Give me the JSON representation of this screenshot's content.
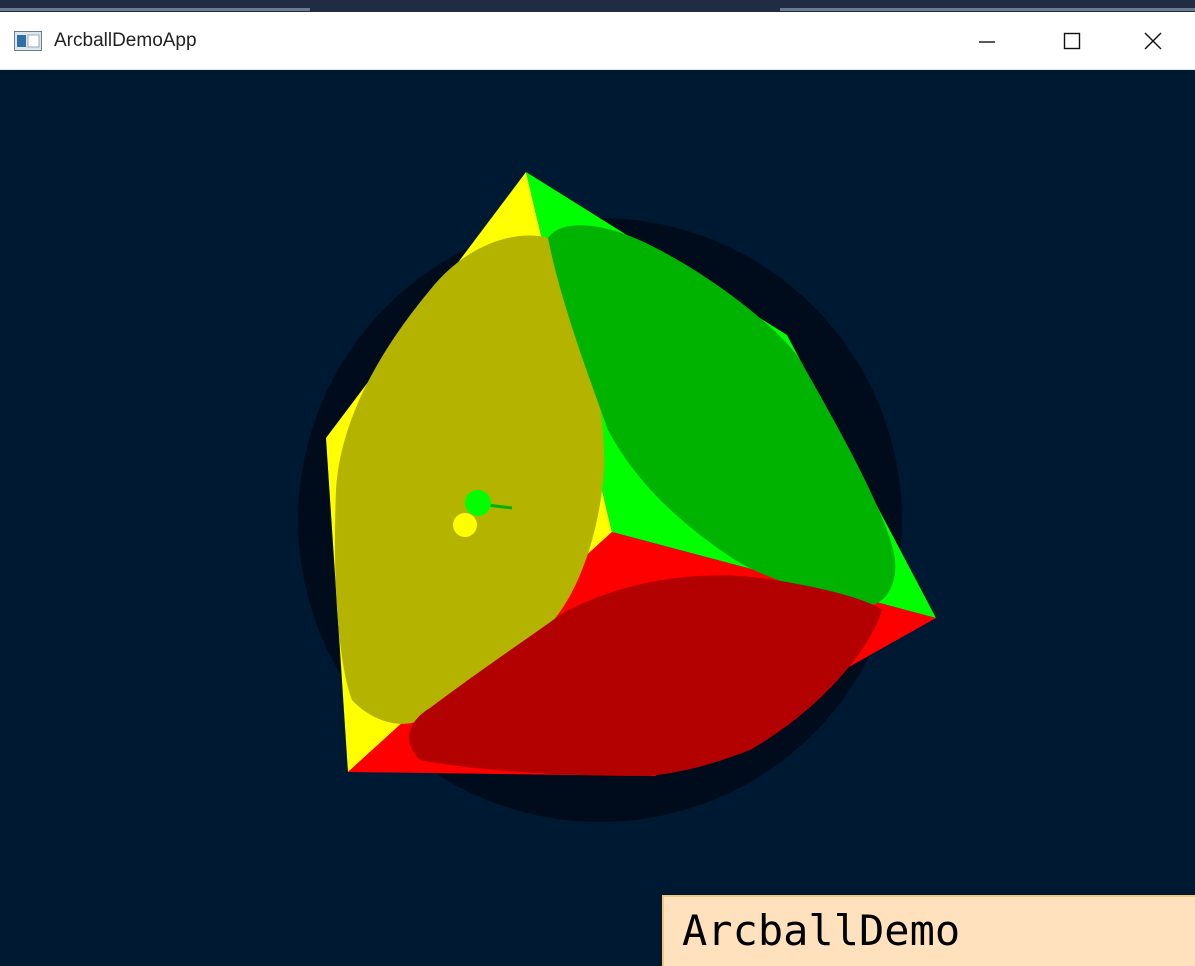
{
  "window": {
    "title": "ArcballDemoApp",
    "controls": {
      "minimize_icon": "minimize-icon",
      "maximize_icon": "maximize-icon",
      "close_icon": "close-icon"
    }
  },
  "viewport": {
    "background": "#001933",
    "faces": {
      "yellow": "#ffff00",
      "green": "#00ff00",
      "red": "#ff0000"
    }
  },
  "overlay": {
    "text": "ArcballDemo",
    "background": "#ffe2bd"
  }
}
